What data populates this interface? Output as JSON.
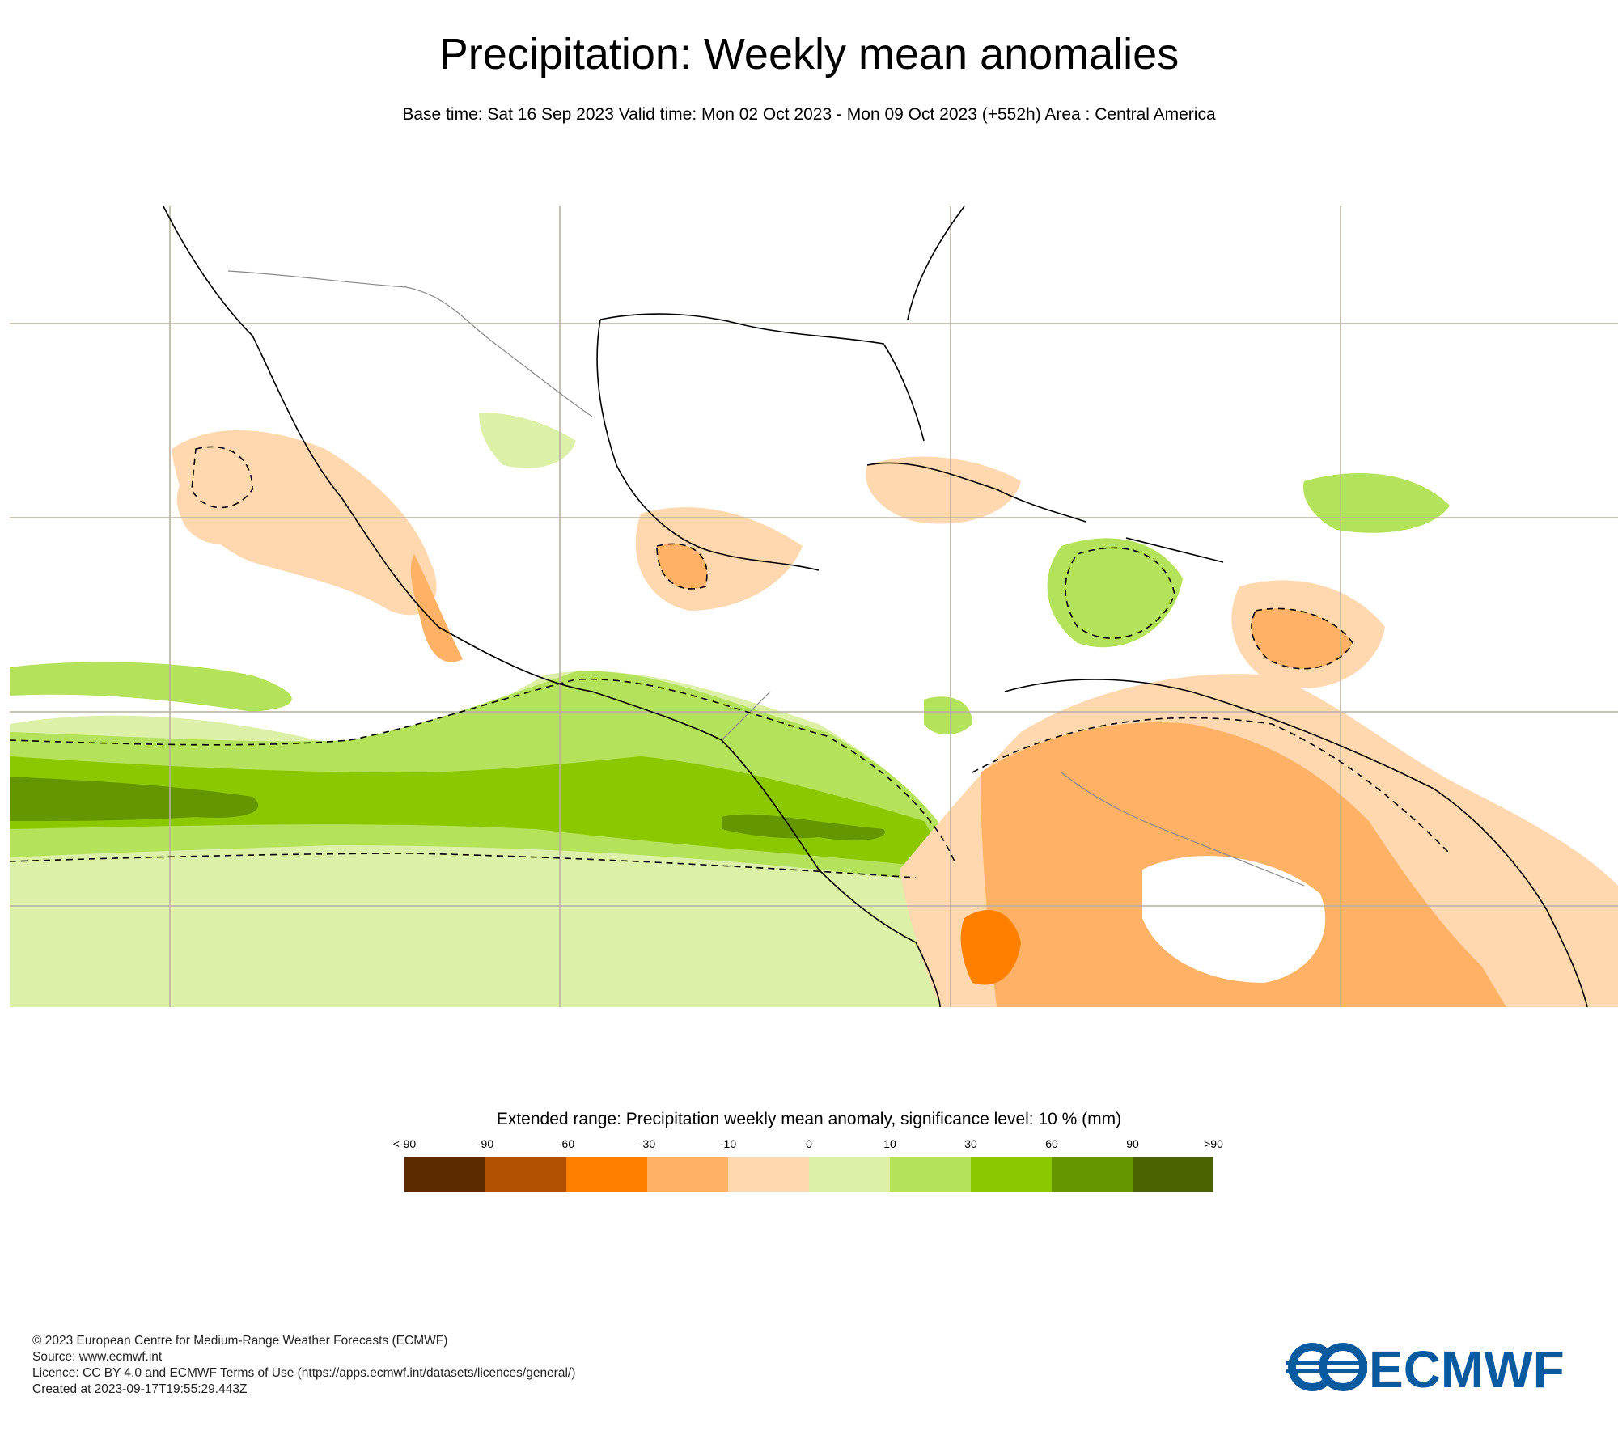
{
  "header": {
    "title": "Precipitation: Weekly mean anomalies",
    "subtitle": "Base time: Sat 16 Sep 2023 Valid time: Mon 02 Oct 2023 - Mon 09 Oct 2023 (+552h) Area : Central America"
  },
  "legend": {
    "title": "Extended range: Precipitation weekly mean anomaly, significance level: 10 % (mm)",
    "ticks": [
      "<-90",
      "-90",
      "-60",
      "-30",
      "-10",
      "0",
      "10",
      "30",
      "60",
      "90",
      ">90"
    ],
    "colors": [
      "#5a2c00",
      "#b05000",
      "#ff8000",
      "#ffb266",
      "#ffd8b0",
      "#dcf0a8",
      "#b4e25a",
      "#8cc800",
      "#649600",
      "#4c6400"
    ]
  },
  "map": {
    "region": "Central America",
    "land_outline_color": "#000000",
    "grid_color": "#b8b0a0"
  },
  "footer": {
    "copyright": "© 2023 European Centre for Medium-Range Weather Forecasts (ECMWF)",
    "source": "Source: www.ecmwf.int",
    "licence": "Licence: CC BY 4.0 and ECMWF Terms of Use (https://apps.ecmwf.int/datasets/licences/general/)",
    "created": "Created at 2023-09-17T19:55:29.443Z"
  },
  "logo": {
    "text": "ECMWF",
    "color": "#0a5aa0"
  }
}
